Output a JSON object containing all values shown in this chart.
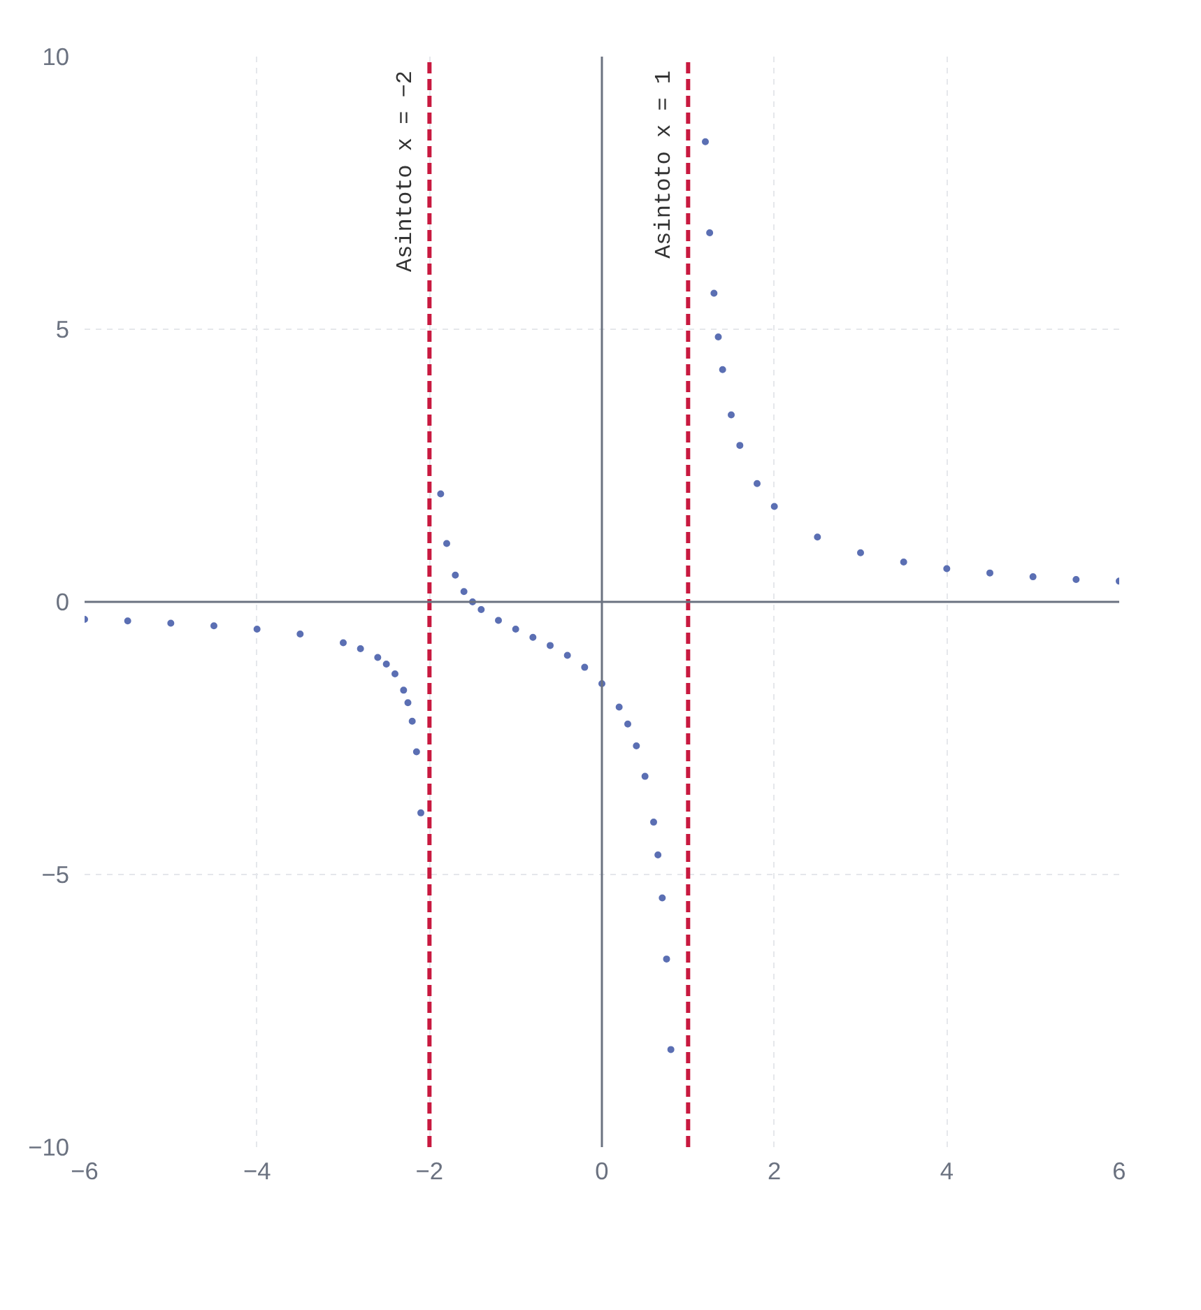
{
  "chart_data": {
    "type": "scatter",
    "xlim": [
      -6,
      6
    ],
    "ylim": [
      -10,
      10
    ],
    "xticks": [
      -6,
      -4,
      -2,
      0,
      2,
      4,
      6
    ],
    "yticks": [
      -10,
      -5,
      0,
      5,
      10
    ],
    "grid": true,
    "marker": "circle",
    "x": [
      -6,
      -5.5,
      -5,
      -4.5,
      -4,
      -3.5,
      -3,
      -2.8,
      -2.6,
      -2.5,
      -2.4,
      -2.3,
      -2.25,
      -2.2,
      -2.15,
      -2.1,
      -1.87,
      -1.8,
      -1.7,
      -1.6,
      -1.5,
      -1.4,
      -1.2,
      -1,
      -0.8,
      -0.6,
      -0.4,
      -0.2,
      0,
      0.2,
      0.3,
      0.4,
      0.5,
      0.6,
      0.65,
      0.7,
      0.75,
      0.8,
      1.2,
      1.25,
      1.3,
      1.35,
      1.4,
      1.5,
      1.6,
      1.8,
      2,
      2.5,
      3,
      3.5,
      4,
      4.5,
      5,
      5.5,
      6
    ],
    "series": [
      {
        "color": "#5b6fb3",
        "values": [
          -0.32,
          -0.35,
          -0.39,
          -0.44,
          -0.5,
          -0.59,
          -0.75,
          -0.86,
          -1.02,
          -1.14,
          -1.32,
          -1.62,
          -1.85,
          -2.19,
          -2.75,
          -3.87,
          1.98,
          1.07,
          0.49,
          0.19,
          0,
          -0.14,
          -0.34,
          -0.5,
          -0.65,
          -0.8,
          -0.98,
          -1.2,
          -1.5,
          -1.93,
          -2.24,
          -2.64,
          -3.2,
          -4.04,
          -4.64,
          -5.43,
          -6.55,
          -8.21,
          8.44,
          6.77,
          5.66,
          4.86,
          4.26,
          3.43,
          2.87,
          2.17,
          1.75,
          1.19,
          0.9,
          0.73,
          0.61,
          0.53,
          0.46,
          0.41,
          0.38
        ]
      }
    ],
    "ref_lines": [
      {
        "axis": "x",
        "value": -2,
        "label": "Asintoto x = −2",
        "color": "#c8193f",
        "line_style": "dashed"
      },
      {
        "axis": "x",
        "value": 1,
        "label": "Asintoto x = 1",
        "color": "#c8193f",
        "line_style": "dashed"
      }
    ]
  }
}
